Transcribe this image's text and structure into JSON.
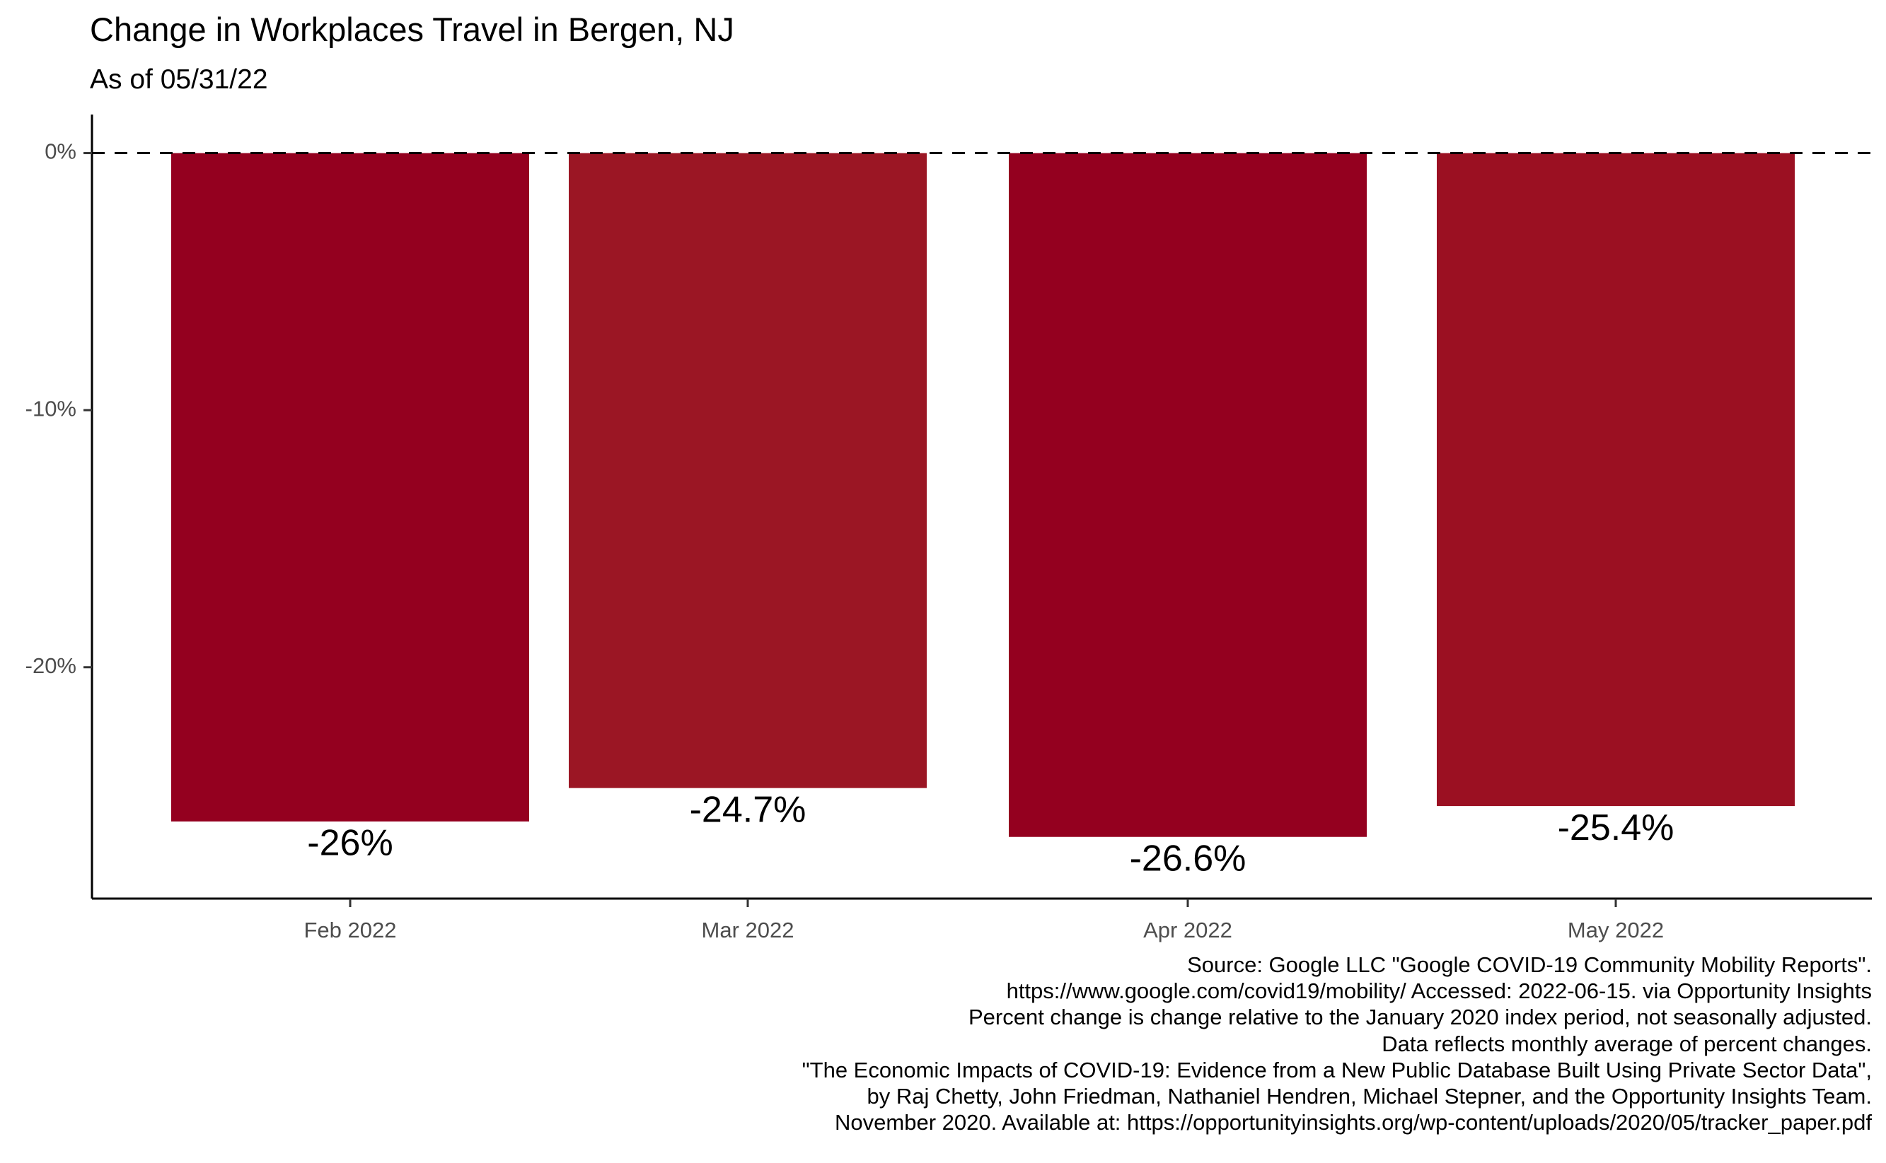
{
  "chart_data": {
    "type": "bar",
    "title": "Change in Workplaces Travel in Bergen, NJ",
    "subtitle": "As of 05/31/22",
    "categories": [
      "Feb 2022",
      "Mar 2022",
      "Apr 2022",
      "May 2022"
    ],
    "values": [
      -26.0,
      -24.7,
      -26.6,
      -25.4
    ],
    "data_labels": [
      "-26%",
      "-24.7%",
      "-26.6%",
      "-25.4%"
    ],
    "bar_colors": [
      "#94001f",
      "#9b1624",
      "#94001f",
      "#9b1022"
    ],
    "ylim": [
      -29,
      1.5
    ],
    "yticks": [
      0,
      -10,
      -20
    ],
    "ytick_labels": [
      "0%",
      "-10%",
      "-20%"
    ],
    "reference_line": {
      "value": 0,
      "style": "dashed",
      "color": "#000000"
    },
    "grid": false,
    "legend": "none"
  },
  "caption": [
    "Source: Google LLC \"Google COVID-19 Community Mobility Reports\".",
    "https://www.google.com/covid19/mobility/ Accessed: 2022-06-15. via Opportunity Insights",
    "Percent change is change relative to the January 2020 index period, not seasonally adjusted.",
    "Data reflects monthly average of percent changes.",
    "\"The Economic Impacts of COVID-19: Evidence from a New Public Database Built Using Private Sector Data\",",
    "by Raj Chetty, John Friedman, Nathaniel Hendren, Michael Stepner, and the Opportunity Insights Team.",
    "November 2020. Available at: https://opportunityinsights.org/wp-content/uploads/2020/05/tracker_paper.pdf"
  ]
}
